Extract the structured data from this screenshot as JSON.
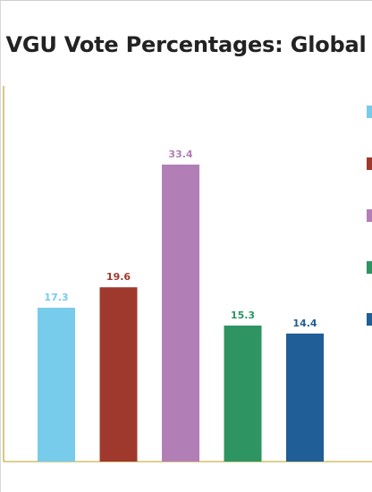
{
  "chart_data": {
    "type": "bar",
    "title": "VGU Vote Percentages: Global",
    "categories": [
      "",
      "",
      "",
      "",
      ""
    ],
    "values": [
      17.3,
      19.6,
      33.4,
      15.3,
      14.4
    ],
    "colors": [
      "#77cbeb",
      "#a0392d",
      "#b27eb6",
      "#2e9462",
      "#1f5e96"
    ],
    "value_labels": [
      "17.3",
      "19.6",
      "33.4",
      "15.3",
      "14.4"
    ],
    "ylim": [
      0,
      40
    ],
    "grid": false,
    "legend": {
      "placement": "right",
      "entries": [
        {
          "color": "#77cbeb"
        },
        {
          "color": "#a0392d"
        },
        {
          "color": "#b27eb6"
        },
        {
          "color": "#2e9462"
        },
        {
          "color": "#1f5e96"
        }
      ]
    }
  }
}
